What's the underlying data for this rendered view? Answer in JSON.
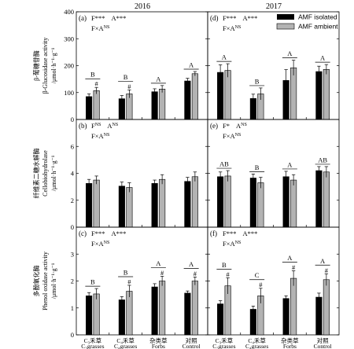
{
  "years": [
    "2016",
    "2017"
  ],
  "legend": {
    "isolated": "AMF isolated",
    "ambient": "AMF ambient"
  },
  "colors": {
    "isolated": "#000000",
    "ambient": "#b3b3b3"
  },
  "row_ylabels": [
    {
      "zh": "β-葡糖苷酶",
      "en": "β-Glucosidase activity",
      "unit": "/μmol·h⁻¹·g⁻¹"
    },
    {
      "zh": "纤维素二糖水解酶",
      "en": "Cellobiohydrolase",
      "unit": "/μmol·h⁻¹·g⁻¹"
    },
    {
      "zh": "多酚氧化酶",
      "en": "Phenol oxidase activity",
      "unit": "/μmol·h⁻¹·g⁻¹"
    }
  ],
  "x_labels": [
    {
      "line1": "C₃禾草",
      "line2": "C₃grasses"
    },
    {
      "line1": "C₄禾草",
      "line2": "C₄grasses"
    },
    {
      "line1": "杂类草",
      "line2": "Forbs"
    },
    {
      "line1": "对照",
      "line2": "Control"
    }
  ],
  "chart_data": [
    {
      "type": "bar",
      "panel": "(a)",
      "year": "2016",
      "row": 0,
      "col": 0,
      "ylim": [
        0,
        400
      ],
      "yticks": [
        0,
        100,
        200,
        300,
        400
      ],
      "stats_line1": [
        {
          "prefix": "F",
          "mark": "***"
        },
        {
          "prefix": "A",
          "mark": "***"
        }
      ],
      "stats_line2": {
        "prefix": "F×A",
        "mark": "NS"
      },
      "categories": [
        "C₃grasses",
        "C₄grasses",
        "Forbs",
        "Control"
      ],
      "series": [
        {
          "name": "AMF isolated",
          "values": [
            85,
            77,
            103,
            143
          ],
          "errors": [
            10,
            12,
            11,
            10
          ]
        },
        {
          "name": "AMF ambient",
          "values": [
            107,
            95,
            113,
            170
          ],
          "errors": [
            12,
            15,
            13,
            8
          ]
        }
      ],
      "letters": [
        "B",
        "B",
        "A",
        "A"
      ],
      "hash": [
        true,
        true,
        false,
        false
      ]
    },
    {
      "type": "bar",
      "panel": "(d)",
      "year": "2017",
      "row": 0,
      "col": 1,
      "ylim": [
        0,
        400
      ],
      "yticks": [
        0,
        100,
        200,
        300,
        400
      ],
      "stats_line1": [
        {
          "prefix": "F",
          "mark": "***"
        },
        {
          "prefix": "A",
          "mark": "***"
        }
      ],
      "stats_line2": {
        "prefix": "F×A",
        "mark": "NS"
      },
      "categories": [
        "C₃grasses",
        "C₄grasses",
        "Forbs",
        "Control"
      ],
      "series": [
        {
          "name": "AMF isolated",
          "values": [
            175,
            78,
            145,
            178
          ],
          "errors": [
            28,
            16,
            40,
            20
          ]
        },
        {
          "name": "AMF ambient",
          "values": [
            182,
            95,
            192,
            186
          ],
          "errors": [
            25,
            22,
            28,
            18
          ]
        }
      ],
      "letters": [
        "A",
        "B",
        "A",
        "A"
      ],
      "hash": [
        false,
        false,
        false,
        false
      ]
    },
    {
      "type": "bar",
      "panel": "(b)",
      "year": "2016",
      "row": 1,
      "col": 0,
      "ylim": [
        0,
        8
      ],
      "yticks": [
        0,
        2,
        4,
        6,
        8
      ],
      "stats_line1": [
        {
          "prefix": "F",
          "mark": "NS"
        },
        {
          "prefix": "A",
          "mark": "NS"
        }
      ],
      "stats_line2": {
        "prefix": "F×A",
        "mark": "NS"
      },
      "categories": [
        "C₃grasses",
        "C₄grasses",
        "Forbs",
        "Control"
      ],
      "series": [
        {
          "name": "AMF isolated",
          "values": [
            3.25,
            3.05,
            3.25,
            3.4
          ],
          "errors": [
            0.3,
            0.3,
            0.25,
            0.3
          ]
        },
        {
          "name": "AMF ambient",
          "values": [
            3.5,
            2.95,
            3.55,
            3.75
          ],
          "errors": [
            0.3,
            0.35,
            0.35,
            0.35
          ]
        }
      ],
      "letters": [
        "",
        "",
        "",
        ""
      ],
      "hash": [
        false,
        false,
        false,
        false
      ]
    },
    {
      "type": "bar",
      "panel": "(e)",
      "year": "2017",
      "row": 1,
      "col": 1,
      "ylim": [
        0,
        8
      ],
      "yticks": [
        0,
        2,
        4,
        6,
        8
      ],
      "stats_line1": [
        {
          "prefix": "F",
          "mark": "*"
        },
        {
          "prefix": "A",
          "mark": "NS"
        }
      ],
      "stats_line2": {
        "prefix": "F×A",
        "mark": "NS"
      },
      "categories": [
        "C₃grasses",
        "C₄grasses",
        "Forbs",
        "Control"
      ],
      "series": [
        {
          "name": "AMF isolated",
          "values": [
            3.75,
            3.65,
            3.75,
            4.2
          ],
          "errors": [
            0.35,
            0.3,
            0.4,
            0.3
          ]
        },
        {
          "name": "AMF ambient",
          "values": [
            3.8,
            3.3,
            3.5,
            4.1
          ],
          "errors": [
            0.4,
            0.4,
            0.4,
            0.4
          ]
        }
      ],
      "letters": [
        "AB",
        "B",
        "A",
        "AB"
      ],
      "hash": [
        false,
        false,
        false,
        false
      ]
    },
    {
      "type": "bar",
      "panel": "(c)",
      "year": "2016",
      "row": 2,
      "col": 0,
      "ylim": [
        0,
        4
      ],
      "yticks": [
        0,
        1,
        2,
        3,
        4
      ],
      "stats_line1": [
        {
          "prefix": "F",
          "mark": "***"
        },
        {
          "prefix": "A",
          "mark": "***"
        }
      ],
      "stats_line2": {
        "prefix": "F×A",
        "mark": "NS"
      },
      "categories": [
        "C₃grasses",
        "C₄grasses",
        "Forbs",
        "Control"
      ],
      "series": [
        {
          "name": "AMF isolated",
          "values": [
            1.45,
            1.3,
            1.78,
            1.55
          ],
          "errors": [
            0.12,
            0.12,
            0.12,
            0.08
          ]
        },
        {
          "name": "AMF ambient",
          "values": [
            1.52,
            1.62,
            2.0,
            2.0
          ],
          "errors": [
            0.2,
            0.22,
            0.18,
            0.15
          ]
        }
      ],
      "letters": [
        "B",
        "B",
        "A",
        "A"
      ],
      "hash": [
        false,
        true,
        true,
        true
      ]
    },
    {
      "type": "bar",
      "panel": "(f)",
      "year": "2017",
      "row": 2,
      "col": 1,
      "ylim": [
        0,
        4
      ],
      "yticks": [
        0,
        1,
        2,
        3,
        4
      ],
      "stats_line1": [
        {
          "prefix": "F",
          "mark": "***"
        },
        {
          "prefix": "A",
          "mark": "***"
        }
      ],
      "stats_line2": {
        "prefix": "F×A",
        "mark": "NS"
      },
      "categories": [
        "C₃grasses",
        "C₄grasses",
        "Forbs",
        "Control"
      ],
      "series": [
        {
          "name": "AMF isolated",
          "values": [
            1.15,
            0.95,
            1.35,
            1.4
          ],
          "errors": [
            0.12,
            0.12,
            0.1,
            0.15
          ]
        },
        {
          "name": "AMF ambient",
          "values": [
            1.82,
            1.45,
            2.1,
            2.05
          ],
          "errors": [
            0.3,
            0.28,
            0.28,
            0.22
          ]
        }
      ],
      "letters": [
        "B",
        "C",
        "A",
        "A"
      ],
      "hash": [
        true,
        true,
        true,
        true
      ]
    }
  ]
}
